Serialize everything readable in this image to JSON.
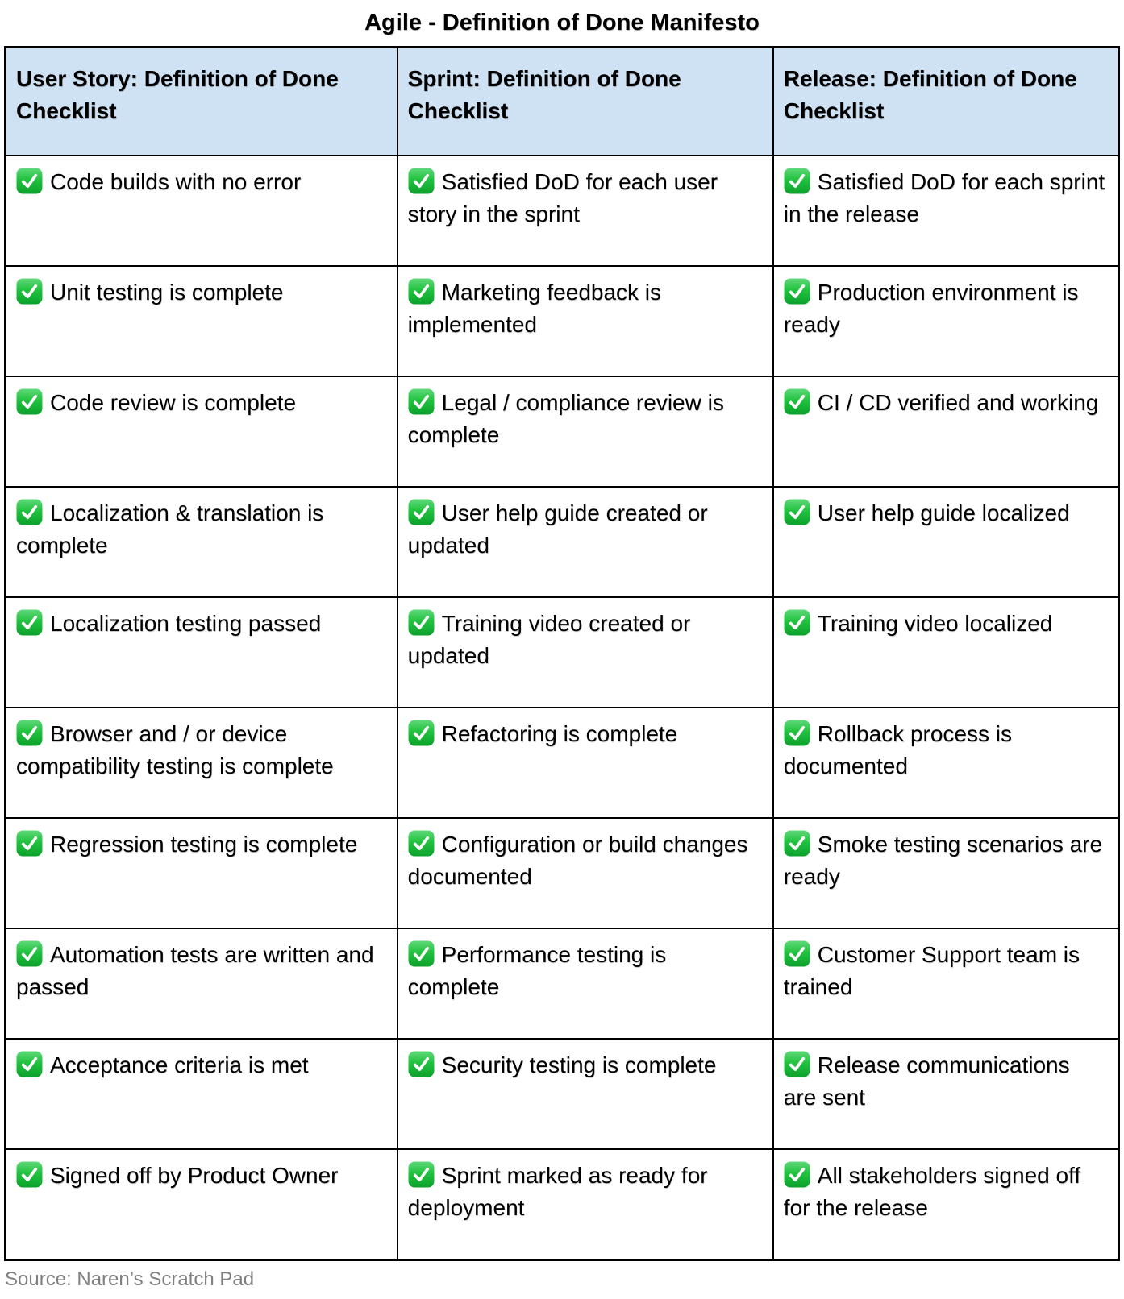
{
  "title": "Agile - Definition of Done Manifesto",
  "source": "Source: Naren’s Scratch Pad",
  "colors": {
    "header_bg": "#cfe2f3",
    "table_border": "#000000",
    "body_text": "#000000",
    "source_text": "#808080",
    "check_green_top": "#61d97a",
    "check_green_bottom": "#0ca12c",
    "check_mark": "#ffffff"
  },
  "icons": {
    "check": "✅"
  },
  "table": {
    "headers": [
      "User Story: Definition of Done Checklist",
      "Sprint: Definition of Done Checklist",
      "Release: Definition of Done Checklist"
    ],
    "rows": [
      [
        "Code builds with no error",
        "Satisfied DoD for each user story in the sprint",
        "Satisfied DoD for each sprint in the release"
      ],
      [
        "Unit testing is complete",
        "Marketing feedback is implemented",
        "Production environment is ready"
      ],
      [
        "Code review is complete",
        "Legal / compliance review is complete",
        "CI / CD verified and working"
      ],
      [
        "Localization & translation is complete",
        "User help guide created or updated",
        "User help guide localized"
      ],
      [
        "Localization testing passed",
        "Training video created or updated",
        "Training video localized"
      ],
      [
        "Browser and / or  device compatibility testing is complete",
        "Refactoring is complete",
        "Rollback process is documented"
      ],
      [
        "Regression testing is complete",
        "Configuration or build changes documented",
        "Smoke testing scenarios are ready"
      ],
      [
        "Automation tests are written and passed",
        "Performance testing is complete",
        "Customer Support team is trained"
      ],
      [
        "Acceptance criteria is met",
        "Security testing is complete",
        "Release communications are sent"
      ],
      [
        "Signed off by Product Owner",
        "Sprint marked as ready for deployment",
        "All stakeholders signed off for the release"
      ]
    ]
  }
}
